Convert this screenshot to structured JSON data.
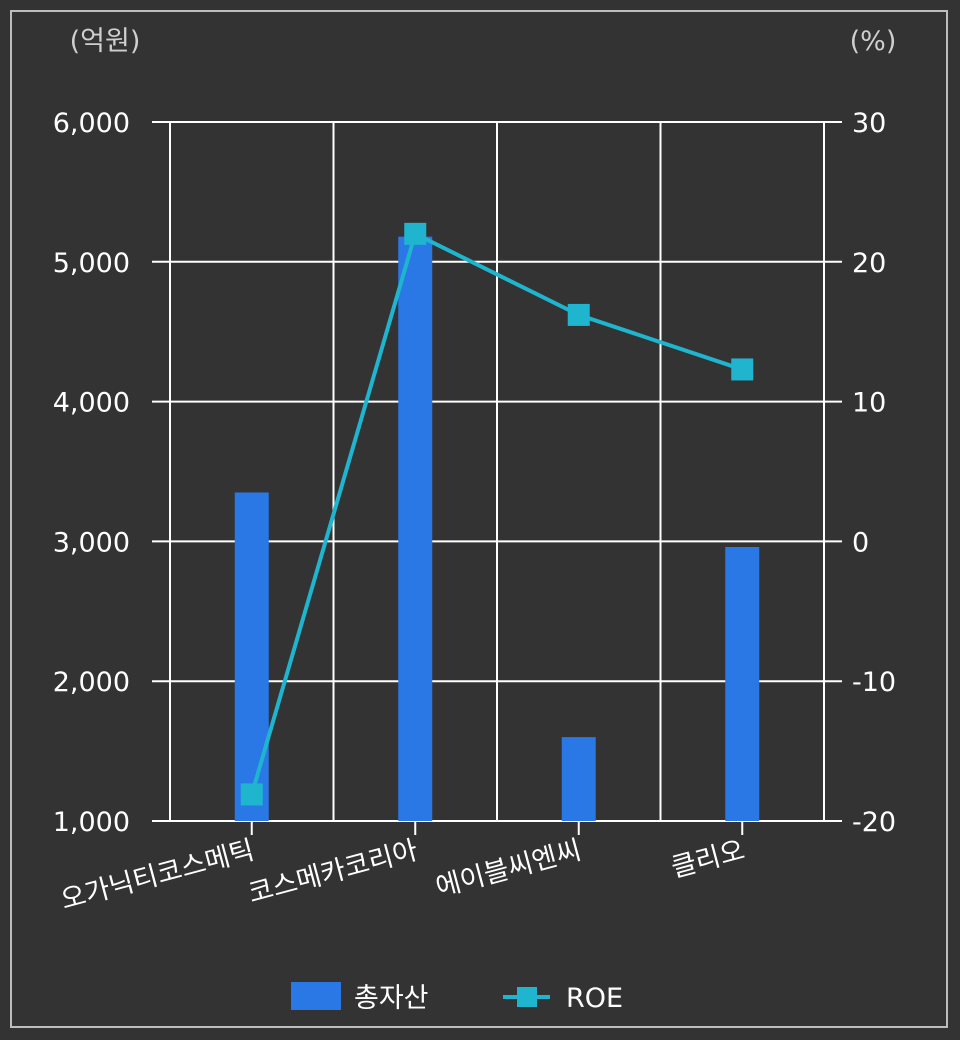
{
  "chart_data": {
    "type": "bar",
    "categories": [
      "오가닉티코스메틱",
      "코스메카코리아",
      "에이블씨엔씨",
      "클리오"
    ],
    "series": [
      {
        "name": "총자산",
        "type": "bar",
        "axis": "left",
        "values": [
          3350,
          5180,
          1600,
          2960
        ]
      },
      {
        "name": "ROE",
        "type": "line",
        "axis": "right",
        "values": [
          -18.1,
          22.0,
          16.2,
          12.3
        ]
      }
    ],
    "left_axis": {
      "unit": "(억원)",
      "ylim": [
        1000,
        6000
      ],
      "ticks": [
        "1,000",
        "2,000",
        "3,000",
        "4,000",
        "5,000",
        "6,000"
      ]
    },
    "right_axis": {
      "unit": "(%)",
      "ylim": [
        -20,
        30
      ],
      "ticks": [
        "-20",
        "-10",
        "0",
        "10",
        "20",
        "30"
      ]
    },
    "grid": true,
    "legend_position": "bottom",
    "colors": {
      "bar": "#2a77e6",
      "line": "#1fb5cf",
      "background": "#333333",
      "grid": "#ffffff"
    }
  }
}
